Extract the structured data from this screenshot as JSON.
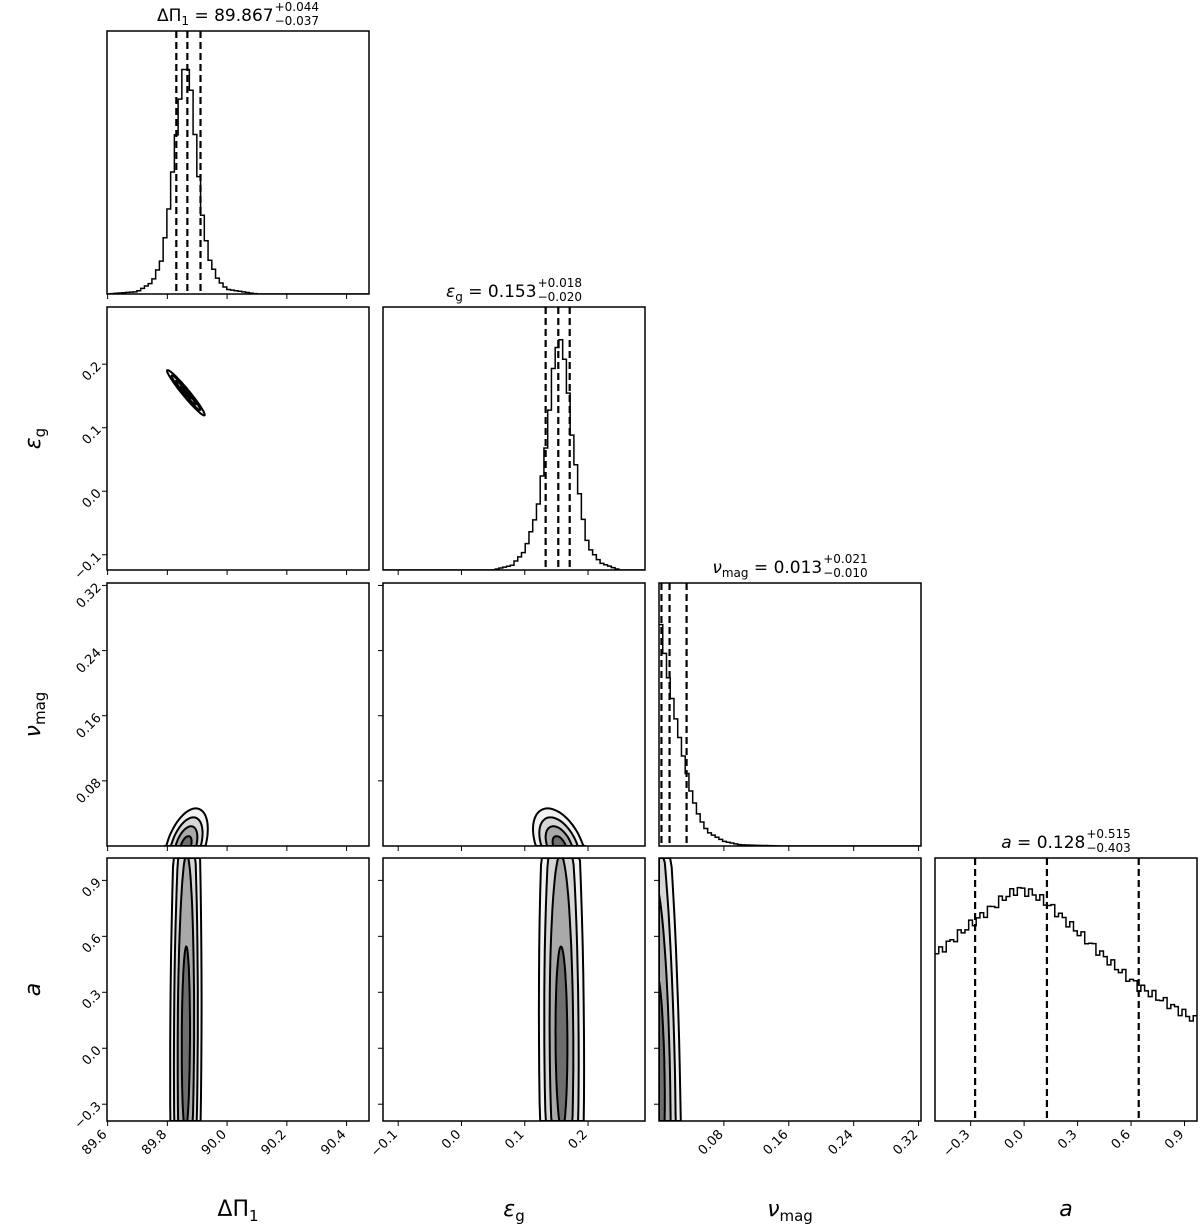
{
  "chart_data": {
    "type": "corner",
    "grid": false,
    "parameters": [
      {
        "key": "dpi1",
        "label": "ΔΠ",
        "sub": "1",
        "italic": false,
        "median": "89.867",
        "err_plus": "+0.044",
        "err_minus": "−0.037",
        "quantiles": [
          89.83,
          89.867,
          89.911
        ],
        "range": [
          89.598,
          90.475
        ],
        "ticks": [
          "89.6",
          "89.8",
          "90.0",
          "90.2",
          "90.4"
        ],
        "histogram": [
          [
            89.6,
            0
          ],
          [
            89.7,
            0.01
          ],
          [
            89.75,
            0.05
          ],
          [
            89.78,
            0.14
          ],
          [
            89.8,
            0.3
          ],
          [
            89.82,
            0.55
          ],
          [
            89.84,
            0.8
          ],
          [
            89.86,
            1.0
          ],
          [
            89.88,
            0.86
          ],
          [
            89.9,
            0.56
          ],
          [
            89.92,
            0.3
          ],
          [
            89.94,
            0.15
          ],
          [
            89.97,
            0.06
          ],
          [
            90.0,
            0.02
          ],
          [
            90.1,
            0.0
          ],
          [
            90.475,
            0
          ]
        ]
      },
      {
        "key": "eps_g",
        "label": "ε",
        "sub": "g",
        "italic": true,
        "median": "0.153",
        "err_plus": "+0.018",
        "err_minus": "−0.020",
        "quantiles": [
          0.133,
          0.153,
          0.171
        ],
        "range": [
          -0.124,
          0.29
        ],
        "ticks": [
          "−0.1",
          "0.0",
          "0.1",
          "0.2"
        ],
        "histogram": [
          [
            -0.124,
            0
          ],
          [
            0.05,
            0
          ],
          [
            0.08,
            0.02
          ],
          [
            0.1,
            0.08
          ],
          [
            0.12,
            0.25
          ],
          [
            0.135,
            0.55
          ],
          [
            0.145,
            0.85
          ],
          [
            0.155,
            1.0
          ],
          [
            0.165,
            0.86
          ],
          [
            0.175,
            0.56
          ],
          [
            0.19,
            0.25
          ],
          [
            0.2,
            0.1
          ],
          [
            0.22,
            0.03
          ],
          [
            0.25,
            0
          ],
          [
            0.29,
            0
          ]
        ]
      },
      {
        "key": "nu_mag",
        "label": "ν",
        "sub": "mag",
        "italic": true,
        "median": "0.013",
        "err_plus": "+0.021",
        "err_minus": "−0.010",
        "quantiles": [
          0.003,
          0.013,
          0.034
        ],
        "range": [
          0,
          0.323
        ],
        "ticks": [
          "0.08",
          "0.16",
          "0.24",
          "0.32"
        ],
        "histogram": [
          [
            0,
            1.0
          ],
          [
            0.005,
            0.86
          ],
          [
            0.01,
            0.74
          ],
          [
            0.02,
            0.55
          ],
          [
            0.03,
            0.38
          ],
          [
            0.04,
            0.22
          ],
          [
            0.05,
            0.12
          ],
          [
            0.06,
            0.06
          ],
          [
            0.08,
            0.02
          ],
          [
            0.1,
            0.005
          ],
          [
            0.15,
            0
          ],
          [
            0.323,
            0
          ]
        ]
      },
      {
        "key": "a",
        "label": "a",
        "sub": "",
        "italic": true,
        "median": "0.128",
        "err_plus": "+0.515",
        "err_minus": "−0.403",
        "quantiles": [
          -0.275,
          0.128,
          0.643
        ],
        "range": [
          -0.5,
          0.97
        ],
        "range_y": [
          -0.39,
          1.02
        ],
        "ticks": [
          "−0.3",
          "0.0",
          "0.3",
          "0.6",
          "0.9"
        ],
        "histogram": [
          [
            -0.5,
            0.7
          ],
          [
            -0.3,
            0.83
          ],
          [
            -0.1,
            0.95
          ],
          [
            -0.03,
            0.98
          ],
          [
            0.05,
            0.96
          ],
          [
            0.13,
            0.92
          ],
          [
            0.3,
            0.8
          ],
          [
            0.5,
            0.66
          ],
          [
            0.64,
            0.57
          ],
          [
            0.8,
            0.5
          ],
          [
            0.97,
            0.42
          ]
        ]
      }
    ],
    "contours": [
      {
        "x": "dpi1",
        "y": "eps_g",
        "center": [
          89.862,
          0.155
        ],
        "sigma": [
          0.03,
          0.017
        ],
        "rho": -0.97
      },
      {
        "x": "dpi1",
        "y": "nu_mag",
        "center": [
          89.862,
          0.0
        ],
        "sigma": [
          0.035,
          0.022
        ],
        "rho": 0.45
      },
      {
        "x": "eps_g",
        "y": "nu_mag",
        "center": [
          0.155,
          0.0
        ],
        "sigma": [
          0.02,
          0.022
        ],
        "rho": -0.45
      },
      {
        "x": "dpi1",
        "y": "a",
        "center": [
          89.862,
          0.05
        ],
        "sigma": [
          0.025,
          0.9
        ],
        "rho": 0.1
      },
      {
        "x": "eps_g",
        "y": "a",
        "center": [
          0.158,
          0.05
        ],
        "sigma": [
          0.017,
          0.9
        ],
        "rho": -0.08
      },
      {
        "x": "nu_mag",
        "y": "a",
        "center": [
          0.0,
          -0.1
        ],
        "sigma": [
          0.013,
          0.9
        ],
        "rho": -0.35
      }
    ]
  }
}
